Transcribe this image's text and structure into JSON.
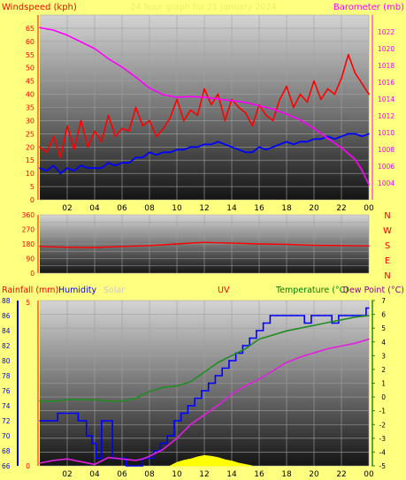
{
  "colors": {
    "background": "#ffff80",
    "red": "#ff0000",
    "blue": "#0000ff",
    "magenta": "#ff00ff",
    "green": "#228b22",
    "dew": "#e020e0",
    "yellow": "#ffff00",
    "grid": "#a0a0a0",
    "solar_label": "#c8c8c8"
  },
  "chart_data": [
    {
      "type": "line",
      "panel": "wind-barometer",
      "title": "24 hour graph for 21 January 2024",
      "ylabel_left": "Windspeed (kph)",
      "ylabel_right": "Barometer (mb)",
      "ylim_left": [
        0,
        70
      ],
      "yticks_left": [
        "0",
        "5",
        "10",
        "15",
        "20",
        "25",
        "30",
        "35",
        "40",
        "45",
        "50",
        "55",
        "60",
        "65"
      ],
      "ylim_right": [
        1002,
        1024
      ],
      "yticks_right": [
        "1004",
        "1006",
        "1008",
        "1010",
        "1012",
        "1014",
        "1016",
        "1018",
        "1020",
        "1022"
      ],
      "xticks": [
        "02",
        "04",
        "06",
        "08",
        "10",
        "12",
        "14",
        "16",
        "18",
        "20",
        "22",
        "00"
      ],
      "grid": true,
      "series": [
        {
          "name": "Gust",
          "color": "#ff0000",
          "axis": "left",
          "x": [
            0,
            0.5,
            1,
            1.5,
            2,
            2.5,
            3,
            3.5,
            4,
            4.5,
            5,
            5.5,
            6,
            6.5,
            7,
            7.5,
            8,
            8.5,
            9,
            9.5,
            10,
            10.5,
            11,
            11.5,
            12,
            12.5,
            13,
            13.5,
            14,
            14.5,
            15,
            15.5,
            16,
            16.5,
            17,
            17.5,
            18,
            18.5,
            19,
            19.5,
            20,
            20.5,
            21,
            21.5,
            22,
            22.5,
            23,
            23.5,
            24
          ],
          "y": [
            20,
            18,
            24,
            16,
            28,
            19,
            30,
            20,
            26,
            22,
            32,
            24,
            27,
            26,
            35,
            28,
            30,
            24,
            27,
            31,
            38,
            30,
            34,
            32,
            42,
            36,
            40,
            30,
            38,
            35,
            33,
            28,
            36,
            32,
            30,
            38,
            43,
            35,
            40,
            37,
            45,
            38,
            42,
            40,
            46,
            55,
            48,
            44,
            40
          ]
        },
        {
          "name": "Windspeed",
          "color": "#0000ff",
          "axis": "left",
          "x": [
            0,
            0.5,
            1,
            1.5,
            2,
            2.5,
            3,
            3.5,
            4,
            4.5,
            5,
            5.5,
            6,
            6.5,
            7,
            7.5,
            8,
            8.5,
            9,
            9.5,
            10,
            10.5,
            11,
            11.5,
            12,
            12.5,
            13,
            13.5,
            14,
            14.5,
            15,
            15.5,
            16,
            16.5,
            17,
            17.5,
            18,
            18.5,
            19,
            19.5,
            20,
            20.5,
            21,
            21.5,
            22,
            22.5,
            23,
            23.5,
            24
          ],
          "y": [
            12,
            11,
            13,
            10,
            12,
            11,
            13,
            12,
            12,
            12,
            14,
            13,
            14,
            14,
            16,
            16,
            18,
            17,
            18,
            18,
            19,
            19,
            20,
            20,
            21,
            21,
            22,
            21,
            20,
            19,
            18,
            18,
            20,
            19,
            20,
            21,
            22,
            21,
            22,
            22,
            23,
            23,
            24,
            23,
            24,
            25,
            25,
            24,
            25
          ]
        },
        {
          "name": "Barometer",
          "color": "#ff00ff",
          "axis": "right",
          "x": [
            0,
            1,
            2,
            3,
            4,
            5,
            6,
            7,
            8,
            9,
            10,
            11,
            12,
            13,
            14,
            15,
            16,
            17,
            18,
            19,
            20,
            21,
            22,
            23,
            23.5,
            24
          ],
          "y": [
            1022.5,
            1022.2,
            1021.6,
            1020.8,
            1020.0,
            1018.8,
            1017.8,
            1016.6,
            1015.3,
            1014.5,
            1014.2,
            1014.3,
            1014.2,
            1014.0,
            1013.8,
            1013.6,
            1013.2,
            1012.8,
            1012.2,
            1011.5,
            1010.5,
            1009.3,
            1008.2,
            1006.8,
            1005.5,
            1003.8
          ]
        }
      ]
    },
    {
      "type": "line",
      "panel": "wind-direction",
      "ylim": [
        0,
        360
      ],
      "yticks": [
        "0",
        "90",
        "180",
        "270",
        "360"
      ],
      "direction_labels": [
        "N",
        "W",
        "S",
        "E",
        "N"
      ],
      "xticks": [],
      "grid": true,
      "series": [
        {
          "name": "Wind Direction",
          "color": "#ff0000",
          "x": [
            0,
            2,
            4,
            6,
            8,
            10,
            12,
            14,
            16,
            18,
            20,
            22,
            24
          ],
          "y": [
            165,
            160,
            158,
            165,
            170,
            180,
            190,
            185,
            180,
            178,
            172,
            170,
            168
          ]
        }
      ]
    },
    {
      "type": "line",
      "panel": "temp-humidity",
      "labels": {
        "rainfall": "Rainfall (mm)",
        "humidity": "Humidity",
        "solar": "Solar",
        "uv": "UV",
        "temperature": "Temperature (°C)",
        "dewpoint": "Dew Point (°C)"
      },
      "ylim_humidity": [
        66,
        88
      ],
      "yticks_humidity": [
        "66",
        "68",
        "70",
        "72",
        "74",
        "76",
        "78",
        "80",
        "82",
        "84",
        "86",
        "88"
      ],
      "yticks_rainfall": [
        "0",
        "5"
      ],
      "ylim_temperature": [
        -5,
        7
      ],
      "yticks_temperature": [
        "-5",
        "-4",
        "-3",
        "-2",
        "-1",
        "0",
        "1",
        "2",
        "3",
        "4",
        "5",
        "6",
        "7"
      ],
      "xticks": [
        "02",
        "04",
        "06",
        "08",
        "10",
        "12",
        "14",
        "16",
        "18",
        "20",
        "22",
        "00"
      ],
      "grid": true,
      "series": [
        {
          "name": "Humidity",
          "color": "#0000ff",
          "axis": "humidity",
          "step": true,
          "x": [
            0,
            0.9,
            1.3,
            2.3,
            2.8,
            3.4,
            3.8,
            4.1,
            4.5,
            4.8,
            5.3,
            5.8,
            6.3,
            7,
            7.5,
            8.3,
            8.8,
            9.3,
            9.8,
            10.3,
            10.8,
            11.3,
            11.8,
            12.3,
            12.8,
            13.3,
            13.8,
            14.3,
            14.8,
            15.3,
            15.8,
            16.3,
            16.8,
            17.3,
            17.8,
            18.3,
            18.8,
            19.3,
            19.8,
            20.3,
            20.8,
            21.3,
            21.8,
            22.3,
            22.8,
            23.3,
            23.8,
            24
          ],
          "y": [
            72,
            72,
            73,
            73,
            72,
            70,
            69,
            67,
            72,
            72,
            67,
            67,
            66,
            66,
            67,
            68,
            69,
            70,
            72,
            73,
            74,
            75,
            76,
            77,
            78,
            79,
            80,
            81,
            82,
            83,
            84,
            85,
            86,
            86,
            86,
            86,
            86,
            85,
            86,
            86,
            86,
            85,
            86,
            86,
            86,
            86,
            87,
            87
          ]
        },
        {
          "name": "Temperature",
          "color": "#228b22",
          "axis": "temperature",
          "x": [
            0,
            1,
            2,
            3,
            4,
            5,
            6,
            7,
            8,
            9,
            10,
            11,
            12,
            13,
            14,
            15,
            16,
            17,
            18,
            19,
            20,
            21,
            22,
            23,
            24
          ],
          "y": [
            -0.3,
            -0.3,
            -0.2,
            -0.2,
            -0.2,
            -0.3,
            -0.3,
            -0.1,
            0.4,
            0.7,
            0.8,
            1.1,
            1.8,
            2.5,
            3.0,
            3.5,
            4.2,
            4.5,
            4.8,
            5.0,
            5.2,
            5.4,
            5.6,
            5.8,
            5.9
          ]
        },
        {
          "name": "Dew Point",
          "color": "#e020e0",
          "axis": "temperature",
          "x": [
            0,
            1,
            2,
            3,
            4,
            5,
            6,
            7,
            7.5,
            8,
            9,
            10,
            11,
            12,
            13,
            14,
            15,
            16,
            17,
            18,
            19,
            20,
            21,
            22,
            23,
            24
          ],
          "y": [
            -4.8,
            -4.6,
            -4.5,
            -4.7,
            -4.9,
            -4.4,
            -4.5,
            -4.6,
            -4.5,
            -4.3,
            -3.8,
            -3.0,
            -2.0,
            -1.3,
            -0.6,
            0.2,
            0.8,
            1.3,
            1.9,
            2.5,
            2.9,
            3.2,
            3.5,
            3.7,
            3.9,
            4.2
          ]
        },
        {
          "name": "Solar",
          "color": "#ffff00",
          "axis": "temperature",
          "fill": true,
          "x": [
            9.5,
            10,
            10.5,
            11,
            11.5,
            12,
            12.5,
            13,
            13.5,
            14,
            14.5,
            15,
            15.5
          ],
          "y": [
            -5,
            -4.75,
            -4.6,
            -4.5,
            -4.35,
            -4.25,
            -4.3,
            -4.4,
            -4.55,
            -4.65,
            -4.8,
            -4.9,
            -5
          ]
        }
      ]
    }
  ]
}
